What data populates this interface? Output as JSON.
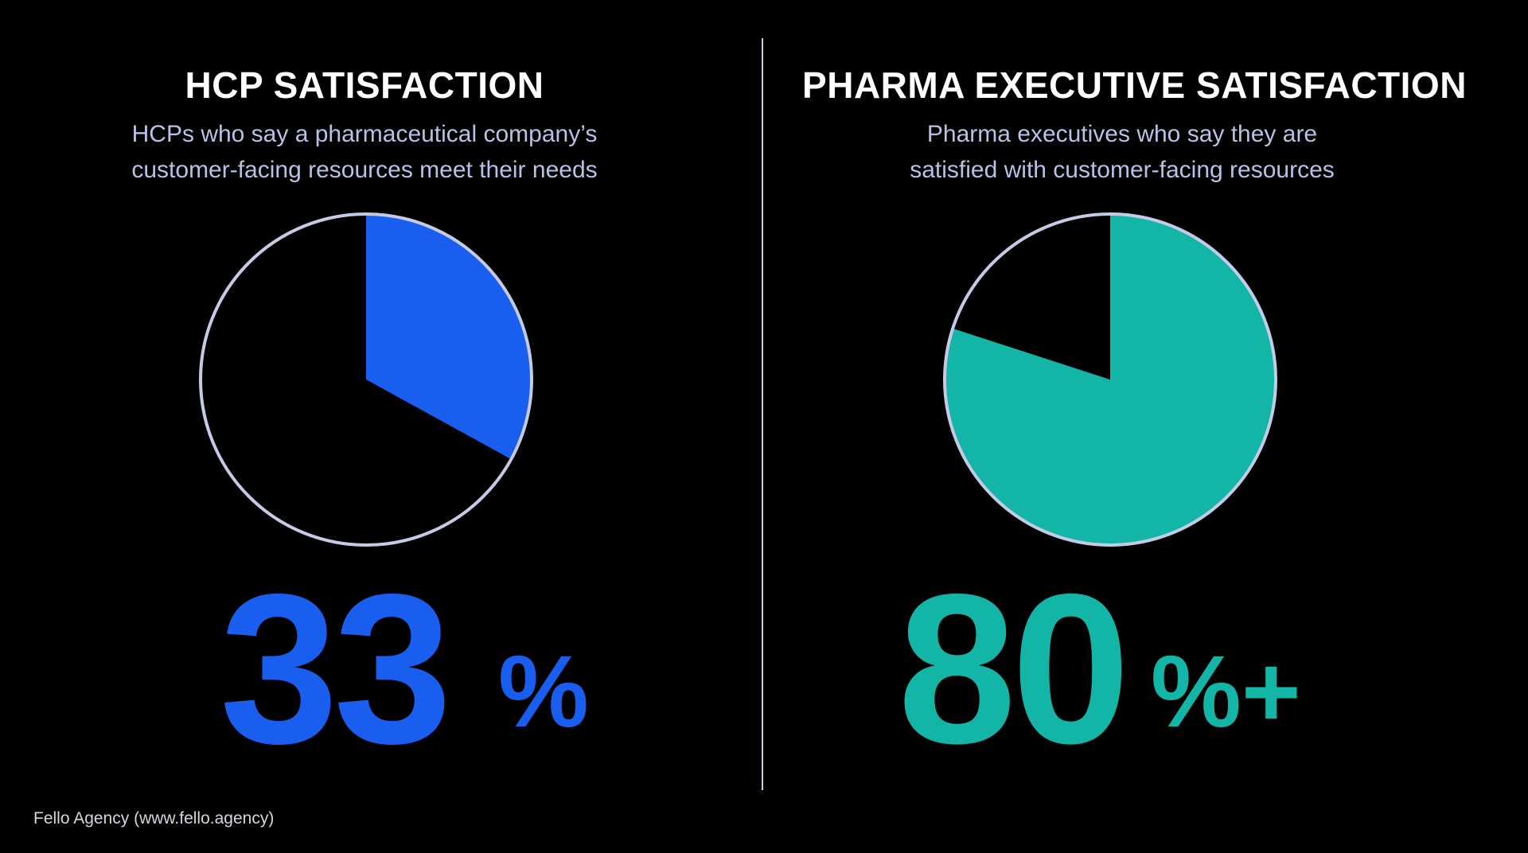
{
  "left_panel": {
    "title": "HCP SATISFACTION",
    "subtitle_line1": "HCPs who say a pharmaceutical company’s",
    "subtitle_line2": "customer-facing resources meet their needs",
    "value_number": "33",
    "value_suffix": "%"
  },
  "right_panel": {
    "title": "PHARMA EXECUTIVE SATISFACTION",
    "subtitle_line1": "Pharma executives who say they are",
    "subtitle_line2": "satisfied with customer-facing resources",
    "value_number": "80",
    "value_suffix": "%+"
  },
  "source": "Fello Agency (www.fello.agency)",
  "colors": {
    "background": "#000000",
    "hcp_blue": "#1a5ef0",
    "exec_teal": "#12b5a6",
    "pie_outline": "#c5cbe6",
    "subtitle_text": "#b9c1e6"
  },
  "chart_data": [
    {
      "type": "pie",
      "title": "HCP SATISFACTION",
      "subtitle": "HCPs who say a pharmaceutical company’s customer-facing resources meet their needs",
      "values": [
        33,
        67
      ],
      "value_label": "33%",
      "colors": [
        "#1a5ef0",
        "#000000"
      ],
      "start": "12 o'clock, clockwise"
    },
    {
      "type": "pie",
      "title": "PHARMA EXECUTIVE SATISFACTION",
      "subtitle": "Pharma executives who say they are satisfied with customer-facing resources",
      "values": [
        80,
        20
      ],
      "value_label": "80%+",
      "colors": [
        "#12b5a6",
        "#000000"
      ],
      "start": "12 o'clock, clockwise"
    }
  ]
}
